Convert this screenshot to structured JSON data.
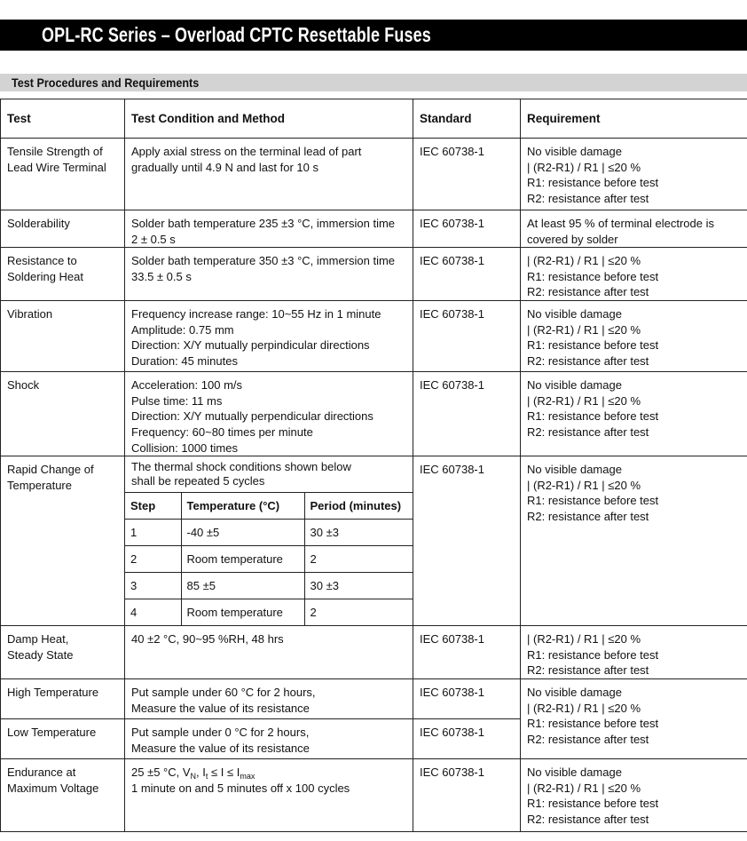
{
  "title": "OPL-RC Series – Overload CPTC Resettable Fuses",
  "section_title": "Test Procedures and Requirements",
  "table": {
    "headers": [
      "Test",
      "Test Condition and Method",
      "Standard",
      "Requirement"
    ],
    "rows": [
      {
        "test": [
          "Tensile Strength of",
          "Lead Wire Terminal"
        ],
        "condition": [
          "Apply axial stress on the terminal lead of part",
          "gradually until 4.9 N and last for 10 s"
        ],
        "standard": "IEC 60738-1",
        "requirement": [
          "No visible damage",
          "| (R2-R1) / R1 | ≤20 %",
          "R1: resistance before test",
          "R2: resistance after test"
        ]
      },
      {
        "test": [
          "Solderability"
        ],
        "condition": [
          "Solder bath temperature 235 ±3 °C, immersion time",
          "2 ± 0.5 s"
        ],
        "standard": "IEC 60738-1",
        "requirement": [
          "At least 95 % of terminal electrode is",
          "covered by solder"
        ]
      },
      {
        "test": [
          "Resistance to",
          "Soldering Heat"
        ],
        "condition": [
          "Solder bath temperature 350 ±3 °C, immersion time",
          "33.5 ± 0.5 s"
        ],
        "standard": "IEC 60738-1",
        "requirement": [
          "| (R2-R1) / R1 | ≤20 %",
          "R1: resistance before test",
          "R2: resistance after test"
        ]
      },
      {
        "test": [
          "Vibration"
        ],
        "condition": [
          "Frequency increase range: 10~55 Hz in 1 minute",
          "Amplitude: 0.75 mm",
          "Direction: X/Y mutually perpindicular directions",
          "Duration: 45 minutes"
        ],
        "standard": "IEC 60738-1",
        "requirement": [
          "No visible damage",
          "| (R2-R1) / R1 | ≤20 %",
          "R1: resistance before test",
          "R2: resistance after test"
        ]
      },
      {
        "test": [
          "Shock"
        ],
        "condition": [
          "Acceleration: 100 m/s",
          "Pulse time: 11 ms",
          "Direction: X/Y mutually perpendicular directions",
          "Frequency: 60~80 times per minute",
          "Collision: 1000 times"
        ],
        "standard": "IEC 60738-1",
        "requirement": [
          "No visible damage",
          "| (R2-R1) / R1 | ≤20 %",
          "R1: resistance before test",
          "R2: resistance after test"
        ]
      },
      {
        "test": [
          "Rapid Change of",
          "Temperature"
        ],
        "condition": [
          "The thermal shock conditions shown below",
          "shall be repeated 5 cycles"
        ],
        "cycle_table": {
          "headers": [
            "Step",
            "Temperature (°C)",
            "Period (minutes)"
          ],
          "rows": [
            [
              "1",
              "-40 ±5",
              "30 ±3"
            ],
            [
              "2",
              "Room temperature",
              "2"
            ],
            [
              "3",
              "85 ±5",
              "30 ±3"
            ],
            [
              "4",
              "Room temperature",
              "2"
            ]
          ]
        },
        "standard": "IEC 60738-1",
        "requirement": [
          "No visible damage",
          "| (R2-R1) / R1 | ≤20 %",
          "R1: resistance before test",
          "R2: resistance after test"
        ]
      },
      {
        "test": [
          "Damp Heat,",
          "Steady State"
        ],
        "condition": [
          "40 ±2 °C, 90~95 %RH, 48 hrs"
        ],
        "standard": "IEC 60738-1",
        "requirement": [
          "| (R2-R1) / R1 | ≤20 %",
          "R1: resistance before test",
          "R2: resistance after test"
        ]
      },
      {
        "test": [
          "High Temperature"
        ],
        "condition": [
          "Put sample under 60 °C for 2 hours,",
          "Measure the value of its resistance"
        ],
        "standard": "IEC 60738-1",
        "requirement": [
          "No visible damage",
          "| (R2-R1) / R1 | ≤20 %",
          "R1: resistance before test",
          "R2: resistance after test"
        ],
        "requirement_rowspan": 2
      },
      {
        "test": [
          "Low Temperature"
        ],
        "condition": [
          "Put sample under 0 °C for 2 hours,",
          "Measure the value of its resistance"
        ],
        "standard": "IEC 60738-1"
      },
      {
        "test": [
          "Endurance at",
          "Maximum Voltage"
        ],
        "condition_rich": [
          [
            {
              "t": "25 ±5 °C, V"
            },
            {
              "sub": "N"
            },
            {
              "t": ", I"
            },
            {
              "sub": "t"
            },
            {
              "t": " ≤ I ≤ I"
            },
            {
              "sub": "max"
            }
          ],
          [
            {
              "t": "1 minute on and 5 minutes off x 100 cycles"
            }
          ]
        ],
        "standard": "IEC 60738-1",
        "requirement": [
          "No visible damage",
          "| (R2-R1) / R1 | ≤20 %",
          "R1: resistance before test",
          "R2: resistance after test"
        ]
      }
    ]
  }
}
